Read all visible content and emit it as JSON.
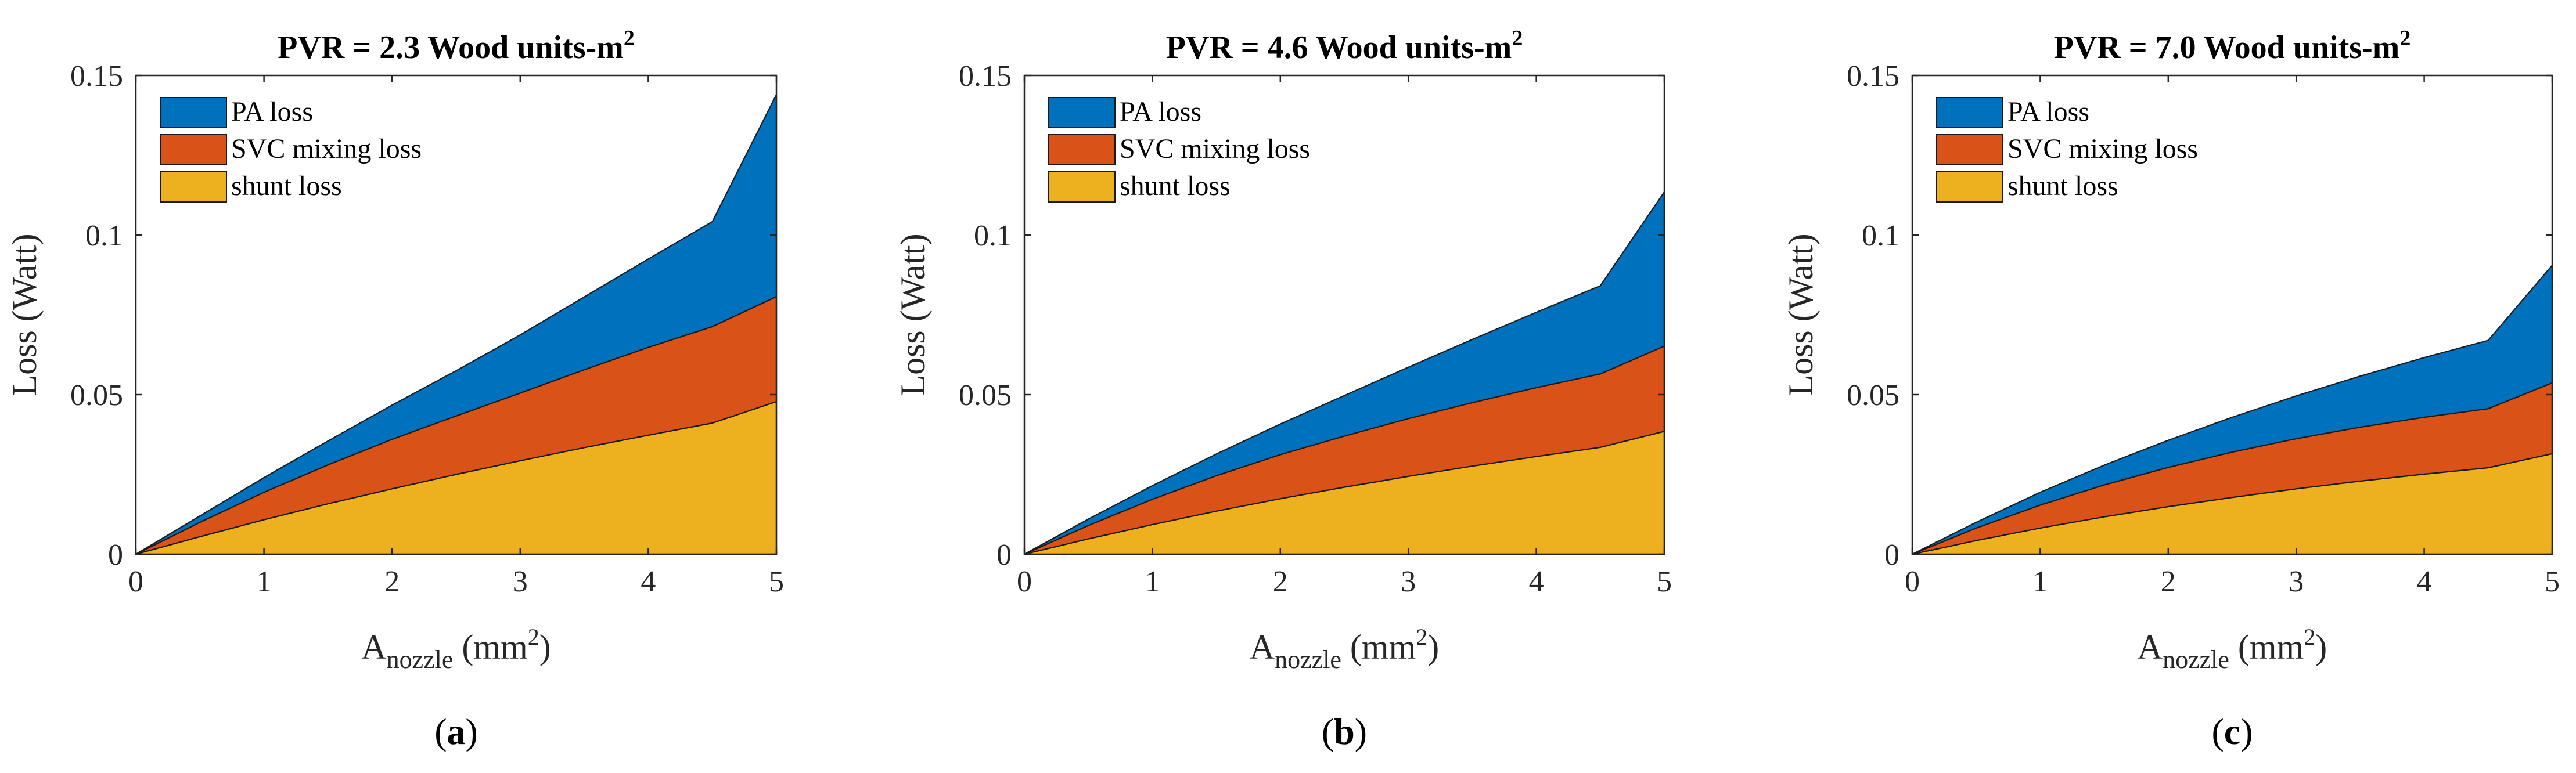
{
  "chart_data": [
    {
      "type": "area",
      "stacked": true,
      "title_prefix": "PVR = 2.3 Wood units-m",
      "title_sup": "2",
      "xlabel_base": "A",
      "xlabel_sub": "nozzle",
      "xlabel_unit": " (mm",
      "xlabel_sup": "2",
      "xlabel_close": ")",
      "ylabel": "Loss (Watt)",
      "xlim": [
        0,
        5
      ],
      "ylim": [
        0,
        0.15
      ],
      "xticks": [
        0,
        1,
        2,
        3,
        4,
        5
      ],
      "yticks": [
        0,
        0.05,
        0.1,
        0.15
      ],
      "ytick_labels": [
        "0",
        "0.05",
        "0.1",
        "0.15"
      ],
      "legend_position": "top-left",
      "x": [
        0,
        0.5,
        1,
        1.5,
        2,
        2.5,
        3,
        3.5,
        4,
        4.5,
        5
      ],
      "series": [
        {
          "name": "shunt loss",
          "values": [
            0,
            0.0055,
            0.0108,
            0.0158,
            0.0205,
            0.025,
            0.0293,
            0.0334,
            0.0373,
            0.0411,
            0.0478
          ]
        },
        {
          "name": "SVC mixing loss",
          "values": [
            0,
            0.0045,
            0.0086,
            0.0122,
            0.0155,
            0.0183,
            0.0212,
            0.0244,
            0.0275,
            0.0302,
            0.0329
          ]
        },
        {
          "name": "PA loss",
          "values": [
            0,
            0.002,
            0.0046,
            0.0075,
            0.0107,
            0.0142,
            0.0182,
            0.0228,
            0.0277,
            0.0329,
            0.0633
          ]
        }
      ],
      "caption_letter": "a"
    },
    {
      "type": "area",
      "stacked": true,
      "title_prefix": "PVR = 4.6 Wood units-m",
      "title_sup": "2",
      "xlabel_base": "A",
      "xlabel_sub": "nozzle",
      "xlabel_unit": " (mm",
      "xlabel_sup": "2",
      "xlabel_close": ")",
      "ylabel": "Loss (Watt)",
      "xlim": [
        0,
        5
      ],
      "ylim": [
        0,
        0.15
      ],
      "xticks": [
        0,
        1,
        2,
        3,
        4,
        5
      ],
      "yticks": [
        0,
        0.05,
        0.1,
        0.15
      ],
      "ytick_labels": [
        "0",
        "0.05",
        "0.1",
        "0.15"
      ],
      "legend_position": "top-left",
      "x": [
        0,
        0.5,
        1,
        1.5,
        2,
        2.5,
        3,
        3.5,
        4,
        4.5,
        5
      ],
      "series": [
        {
          "name": "shunt loss",
          "values": [
            0,
            0.0048,
            0.0093,
            0.0135,
            0.0174,
            0.021,
            0.0244,
            0.0276,
            0.0306,
            0.0335,
            0.0385
          ]
        },
        {
          "name": "SVC mixing loss",
          "values": [
            0,
            0.0042,
            0.0079,
            0.0111,
            0.0138,
            0.016,
            0.0181,
            0.0199,
            0.0216,
            0.023,
            0.0267
          ]
        },
        {
          "name": "PA loss",
          "values": [
            0,
            0.002,
            0.0043,
            0.0068,
            0.0096,
            0.0127,
            0.0161,
            0.0198,
            0.0236,
            0.0276,
            0.0483
          ]
        }
      ],
      "caption_letter": "b"
    },
    {
      "type": "area",
      "stacked": true,
      "title_prefix": "PVR = 7.0 Wood units-m",
      "title_sup": "2",
      "xlabel_base": "A",
      "xlabel_sub": "nozzle",
      "xlabel_unit": " (mm",
      "xlabel_sup": "2",
      "xlabel_close": ")",
      "ylabel": "Loss (Watt)",
      "xlim": [
        0,
        5
      ],
      "ylim": [
        0,
        0.15
      ],
      "xticks": [
        0,
        1,
        2,
        3,
        4,
        5
      ],
      "yticks": [
        0,
        0.05,
        0.1,
        0.15
      ],
      "ytick_labels": [
        "0",
        "0.05",
        "0.1",
        "0.15"
      ],
      "legend_position": "top-left",
      "x": [
        0,
        0.5,
        1,
        1.5,
        2,
        2.5,
        3,
        3.5,
        4,
        4.5,
        5
      ],
      "series": [
        {
          "name": "shunt loss",
          "values": [
            0,
            0.0043,
            0.0082,
            0.0117,
            0.0149,
            0.0178,
            0.0205,
            0.0229,
            0.0251,
            0.0271,
            0.0315
          ]
        },
        {
          "name": "SVC mixing loss",
          "values": [
            0,
            0.0039,
            0.0072,
            0.01,
            0.0123,
            0.0142,
            0.0157,
            0.0169,
            0.0178,
            0.0185,
            0.0222
          ]
        },
        {
          "name": "PA loss",
          "values": [
            0,
            0.0018,
            0.004,
            0.0062,
            0.0085,
            0.0109,
            0.0134,
            0.016,
            0.0187,
            0.0214,
            0.0368
          ]
        }
      ],
      "caption_letter": "c"
    }
  ],
  "legend": [
    {
      "name": "PA loss",
      "color": "#0072BD"
    },
    {
      "name": "SVC mixing loss",
      "color": "#D95319"
    },
    {
      "name": "shunt loss",
      "color": "#EDB120"
    }
  ],
  "colors": {
    "PA loss": "#0072BD",
    "SVC mixing loss": "#D95319",
    "shunt loss": "#EDB120",
    "axis": "#262626",
    "outline": "#1a1a1a"
  },
  "caption_open": "(",
  "caption_close": ")"
}
